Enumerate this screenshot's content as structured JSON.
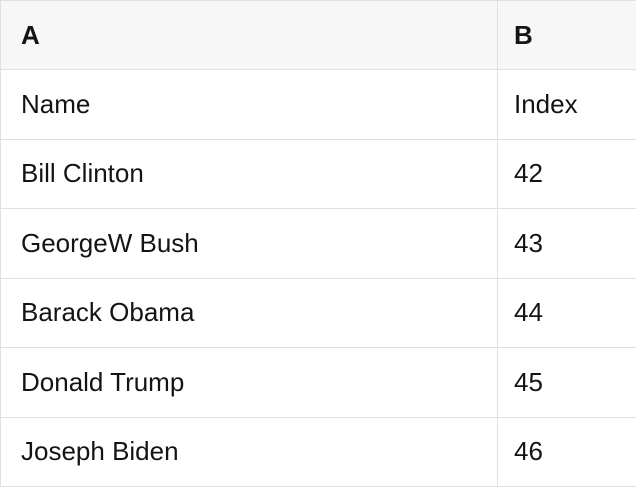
{
  "table": {
    "column_headers": [
      "A",
      "B"
    ],
    "rows": [
      [
        "Name",
        "Index"
      ],
      [
        "Bill Clinton",
        "42"
      ],
      [
        "GeorgeW Bush",
        "43"
      ],
      [
        "Barack Obama",
        "44"
      ],
      [
        "Donald Trump",
        "45"
      ],
      [
        "Joseph Biden",
        "46"
      ]
    ]
  },
  "colors": {
    "header_bg": "#f7f7f7",
    "row_bg": "#ffffff",
    "border": "#e0e0e0",
    "text": "#141414"
  }
}
